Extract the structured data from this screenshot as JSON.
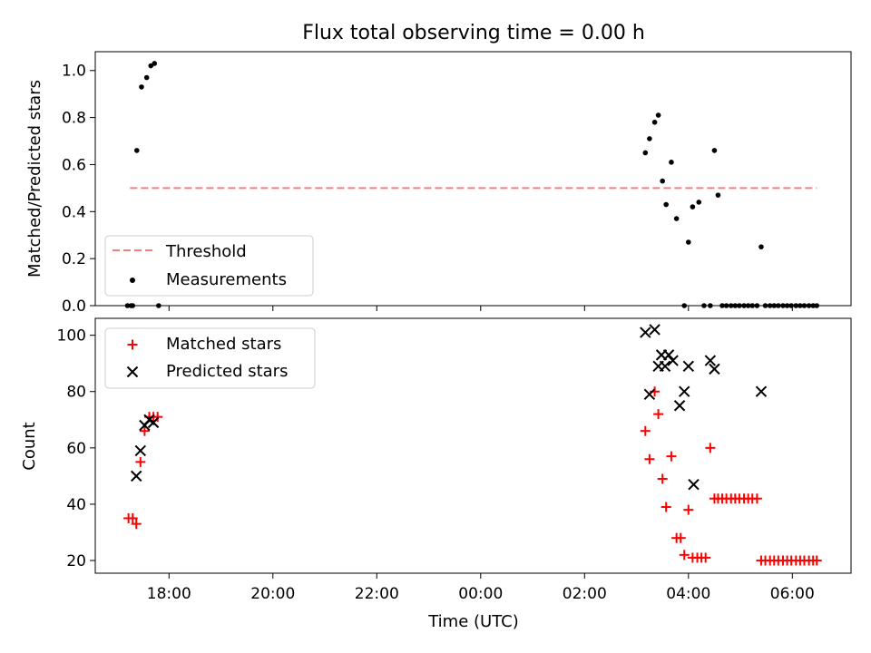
{
  "chart_data": [
    {
      "type": "scatter",
      "title": "Flux total observing time = 0.00 h",
      "xlabel": "",
      "ylabel": "Matched/Predicted stars",
      "ylim": [
        0.0,
        1.08
      ],
      "xlim_hours": [
        16.58,
        31.13
      ],
      "yticks": [
        0.0,
        0.2,
        0.4,
        0.6,
        0.8,
        1.0
      ],
      "ytick_labels": [
        "0.0",
        "0.2",
        "0.4",
        "0.6",
        "0.8",
        "1.0"
      ],
      "legend_position": "lower-left",
      "grid": false,
      "threshold": {
        "name": "Threshold",
        "value": 0.5,
        "x_start": 17.25,
        "x_end": 30.47,
        "color": "#f08080",
        "style": "dashed"
      },
      "series": [
        {
          "name": "Measurements",
          "marker": "dot",
          "color": "#000000",
          "x": [
            17.2,
            17.27,
            17.3,
            17.38,
            17.47,
            17.57,
            17.65,
            17.72,
            17.8,
            27.17,
            27.25,
            27.35,
            27.42,
            27.5,
            27.57,
            27.67,
            27.77,
            27.92,
            28.0,
            28.08,
            28.2,
            28.3,
            28.42,
            28.5,
            28.57,
            28.65,
            28.73,
            28.82,
            28.9,
            28.98,
            29.07,
            29.15,
            29.23,
            29.32,
            29.4,
            29.48,
            29.57,
            29.65,
            29.73,
            29.82,
            29.9,
            29.98,
            30.07,
            30.15,
            30.23,
            30.32,
            30.4,
            30.47
          ],
          "y": [
            0.0,
            0.0,
            0.0,
            0.66,
            0.93,
            0.97,
            1.02,
            1.03,
            0.0,
            0.65,
            0.71,
            0.78,
            0.81,
            0.53,
            0.43,
            0.61,
            0.37,
            0.0,
            0.27,
            0.42,
            0.44,
            0.0,
            0.0,
            0.66,
            0.47,
            0.0,
            0.0,
            0.0,
            0.0,
            0.0,
            0.0,
            0.0,
            0.0,
            0.0,
            0.25,
            0.0,
            0.0,
            0.0,
            0.0,
            0.0,
            0.0,
            0.0,
            0.0,
            0.0,
            0.0,
            0.0,
            0.0,
            0.0
          ]
        }
      ]
    },
    {
      "type": "scatter",
      "title": "",
      "xlabel": "Time (UTC)",
      "ylabel": "Count",
      "ylim": [
        15.5,
        106
      ],
      "xlim_hours": [
        16.58,
        31.13
      ],
      "yticks": [
        20,
        40,
        60,
        80,
        100
      ],
      "ytick_labels": [
        "20",
        "40",
        "60",
        "80",
        "100"
      ],
      "xticks_hours": [
        18,
        20,
        22,
        24,
        26,
        28,
        30
      ],
      "xtick_labels": [
        "18:00",
        "20:00",
        "22:00",
        "00:00",
        "02:00",
        "04:00",
        "06:00"
      ],
      "legend_position": "upper-left",
      "grid": false,
      "series": [
        {
          "name": "Matched stars",
          "marker": "plus",
          "color": "#ff0000",
          "x": [
            17.22,
            17.3,
            17.37,
            17.45,
            17.53,
            17.62,
            17.7,
            17.78,
            27.17,
            27.25,
            27.35,
            27.42,
            27.5,
            27.57,
            27.67,
            27.77,
            27.85,
            27.92,
            28.0,
            28.08,
            28.17,
            28.25,
            28.33,
            28.42,
            28.5,
            28.57,
            28.65,
            28.73,
            28.82,
            28.9,
            28.98,
            29.07,
            29.15,
            29.23,
            29.32,
            29.4,
            29.48,
            29.57,
            29.65,
            29.73,
            29.82,
            29.9,
            29.98,
            30.07,
            30.15,
            30.23,
            30.32,
            30.4,
            30.47
          ],
          "y": [
            35,
            35,
            33,
            55,
            66,
            71,
            71,
            71,
            66,
            56,
            80,
            72,
            49,
            39,
            57,
            28,
            28,
            22,
            38,
            21,
            21,
            21,
            21,
            60,
            42,
            42,
            42,
            42,
            42,
            42,
            42,
            42,
            42,
            42,
            42,
            20,
            20,
            20,
            20,
            20,
            20,
            20,
            20,
            20,
            20,
            20,
            20,
            20,
            20
          ]
        },
        {
          "name": "Predicted stars",
          "marker": "x",
          "color": "#000000",
          "x": [
            17.37,
            17.45,
            17.53,
            17.62,
            17.7,
            27.17,
            27.25,
            27.35,
            27.42,
            27.48,
            27.55,
            27.62,
            27.7,
            27.83,
            27.92,
            28.0,
            28.1,
            28.42,
            28.5,
            29.4
          ],
          "y": [
            50,
            59,
            68,
            70,
            69,
            101,
            79,
            102,
            89,
            93,
            89,
            93,
            91,
            75,
            80,
            89,
            47,
            91,
            88,
            80
          ]
        }
      ]
    }
  ]
}
